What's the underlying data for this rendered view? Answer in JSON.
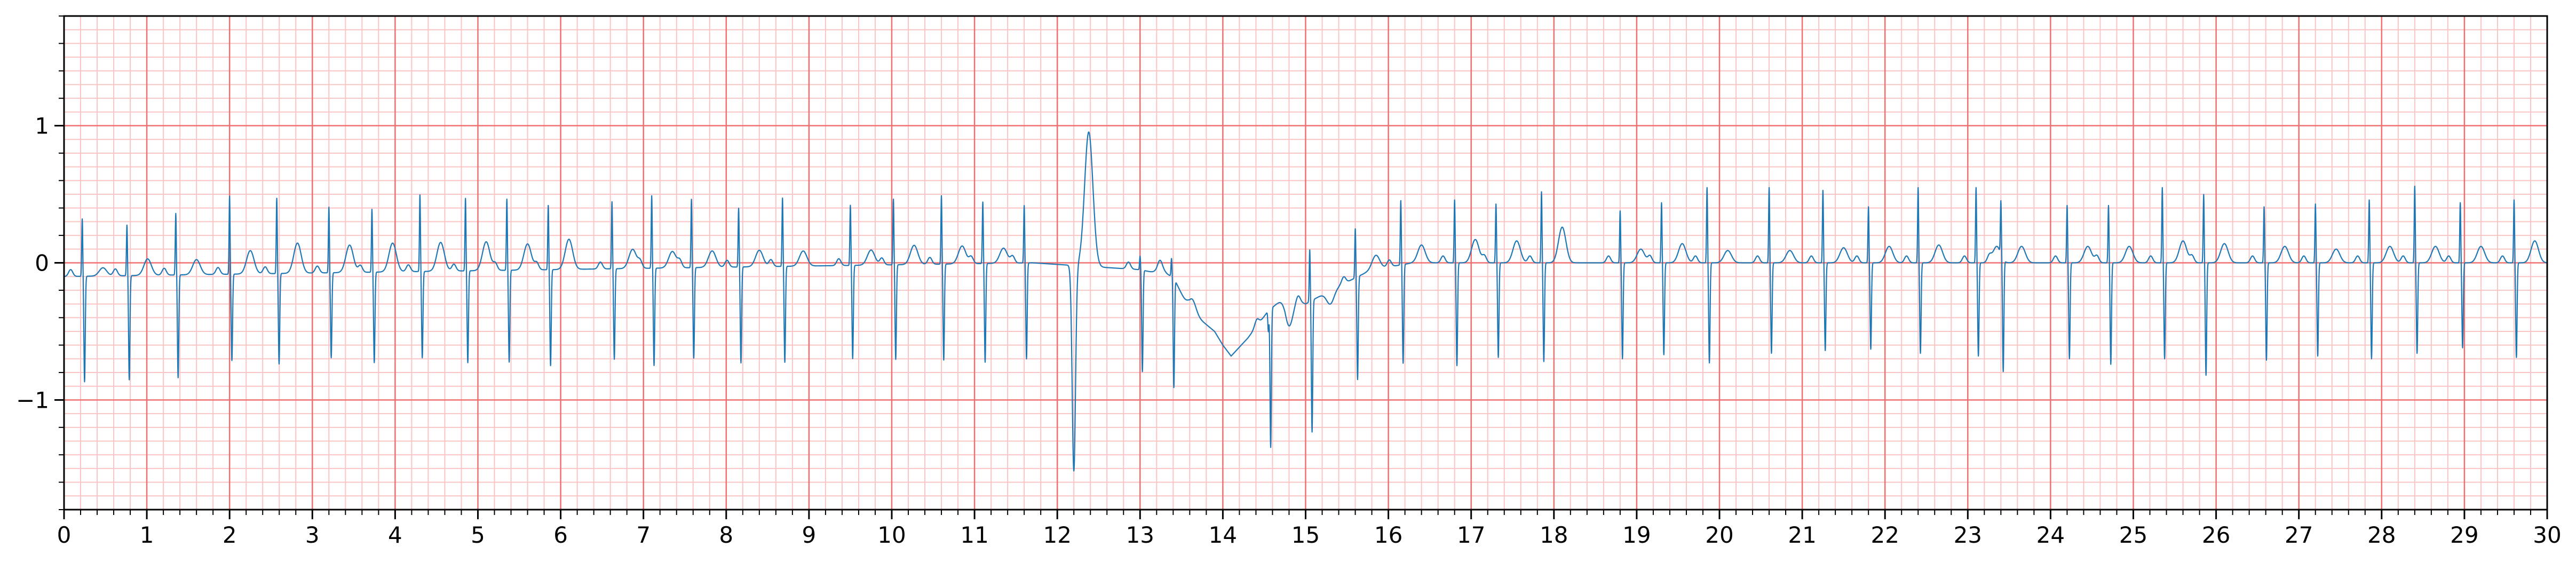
{
  "chart_data": {
    "type": "line",
    "title": "",
    "xlabel": "",
    "ylabel": "",
    "xlim": [
      0,
      30
    ],
    "ylim": [
      -1.8,
      1.8
    ],
    "x_ticks": [
      0,
      1,
      2,
      3,
      4,
      5,
      6,
      7,
      8,
      9,
      10,
      11,
      12,
      13,
      14,
      15,
      16,
      17,
      18,
      19,
      20,
      21,
      22,
      23,
      24,
      25,
      26,
      27,
      28,
      29,
      30
    ],
    "x_tick_labels": [
      "0",
      "1",
      "2",
      "3",
      "4",
      "5",
      "6",
      "7",
      "8",
      "9",
      "10",
      "11",
      "12",
      "13",
      "14",
      "15",
      "16",
      "17",
      "18",
      "19",
      "20",
      "21",
      "22",
      "23",
      "24",
      "25",
      "26",
      "27",
      "28",
      "29",
      "30"
    ],
    "y_ticks": [
      -1,
      0,
      1
    ],
    "y_tick_labels": [
      "−1",
      "0",
      "1"
    ],
    "grid": {
      "major": {
        "x_step": 1,
        "y_step": 1,
        "color": "#f07070"
      },
      "minor": {
        "x_step": 0.2,
        "y_step": 0.1,
        "color": "#fbc4c4"
      }
    },
    "series": [
      {
        "color": "#1f77b4",
        "beats": [
          {
            "t": 0.22,
            "r": 0.42,
            "s": -0.77,
            "tw": 0.06
          },
          {
            "t": 0.76,
            "r": 0.37,
            "s": -0.76,
            "tw": 0.12
          },
          {
            "t": 1.35,
            "r": 0.45,
            "s": -0.75,
            "tw": 0.11
          },
          {
            "t": 2.0,
            "r": 0.57,
            "s": -0.63,
            "tw": 0.17
          },
          {
            "t": 2.57,
            "r": 0.55,
            "s": -0.66,
            "tw": 0.22
          },
          {
            "t": 3.2,
            "r": 0.48,
            "s": -0.62,
            "tw": 0.2
          },
          {
            "t": 3.72,
            "r": 0.46,
            "s": -0.66,
            "tw": 0.21
          },
          {
            "t": 4.3,
            "r": 0.56,
            "s": -0.63,
            "tw": 0.21
          },
          {
            "t": 4.85,
            "r": 0.53,
            "s": -0.67,
            "tw": 0.21
          },
          {
            "t": 5.35,
            "r": 0.52,
            "s": -0.67,
            "tw": 0.19
          },
          {
            "t": 5.85,
            "r": 0.47,
            "s": -0.7,
            "tw": 0.22
          },
          {
            "t": 6.62,
            "r": 0.49,
            "s": -0.66,
            "tw": 0.14
          },
          {
            "t": 7.1,
            "r": 0.53,
            "s": -0.71,
            "tw": 0.12
          },
          {
            "t": 7.58,
            "r": 0.5,
            "s": -0.66,
            "tw": 0.12
          },
          {
            "t": 8.15,
            "r": 0.43,
            "s": -0.7,
            "tw": 0.12
          },
          {
            "t": 8.68,
            "r": 0.5,
            "s": -0.7,
            "tw": 0.11
          },
          {
            "t": 9.5,
            "r": 0.44,
            "s": -0.68,
            "tw": 0.11
          },
          {
            "t": 10.02,
            "r": 0.48,
            "s": -0.69,
            "tw": 0.14
          },
          {
            "t": 10.6,
            "r": 0.5,
            "s": -0.7,
            "tw": 0.13
          },
          {
            "t": 11.1,
            "r": 0.45,
            "s": -0.72,
            "tw": 0.11
          },
          {
            "t": 11.6,
            "r": 0.42,
            "s": -0.7,
            "tw": 0.0
          },
          {
            "t": 13.0,
            "r": 0.1,
            "s": -0.74,
            "tw": 0.05
          },
          {
            "t": 13.38,
            "r": 0.13,
            "s": -0.8,
            "tw": 0.1
          },
          {
            "t": 14.55,
            "r": -0.15,
            "s": -1.01,
            "tw": -0.2
          },
          {
            "t": 15.05,
            "r": 0.38,
            "s": -0.96,
            "tw": -0.1
          },
          {
            "t": 15.6,
            "r": 0.36,
            "s": -0.75,
            "tw": 0.1
          },
          {
            "t": 16.15,
            "r": 0.47,
            "s": -0.72,
            "tw": 0.13
          },
          {
            "t": 16.8,
            "r": 0.46,
            "s": -0.75,
            "tw": 0.17
          },
          {
            "t": 17.3,
            "r": 0.43,
            "s": -0.69,
            "tw": 0.16
          },
          {
            "t": 17.85,
            "r": 0.52,
            "s": -0.72,
            "tw": 0.26
          },
          {
            "t": 18.8,
            "r": 0.38,
            "s": -0.7,
            "tw": 0.1
          },
          {
            "t": 19.3,
            "r": 0.44,
            "s": -0.67,
            "tw": 0.14
          },
          {
            "t": 19.85,
            "r": 0.55,
            "s": -0.73,
            "tw": 0.09
          },
          {
            "t": 20.6,
            "r": 0.55,
            "s": -0.66,
            "tw": 0.09
          },
          {
            "t": 21.25,
            "r": 0.53,
            "s": -0.64,
            "tw": 0.11
          },
          {
            "t": 21.8,
            "r": 0.41,
            "s": -0.63,
            "tw": 0.12
          },
          {
            "t": 22.4,
            "r": 0.55,
            "s": -0.66,
            "tw": 0.13
          },
          {
            "t": 23.1,
            "r": 0.55,
            "s": -0.68,
            "tw": 0.12
          },
          {
            "t": 23.4,
            "r": 0.39,
            "s": -0.82,
            "tw": 0.12
          },
          {
            "t": 24.2,
            "r": 0.42,
            "s": -0.7,
            "tw": 0.12
          },
          {
            "t": 24.7,
            "r": 0.42,
            "s": -0.74,
            "tw": 0.12
          },
          {
            "t": 25.35,
            "r": 0.55,
            "s": -0.7,
            "tw": 0.16
          },
          {
            "t": 25.85,
            "r": 0.5,
            "s": -0.82,
            "tw": 0.14
          },
          {
            "t": 26.58,
            "r": 0.41,
            "s": -0.71,
            "tw": 0.12
          },
          {
            "t": 27.2,
            "r": 0.43,
            "s": -0.68,
            "tw": 0.1
          },
          {
            "t": 27.85,
            "r": 0.46,
            "s": -0.7,
            "tw": 0.12
          },
          {
            "t": 28.4,
            "r": 0.56,
            "s": -0.66,
            "tw": 0.12
          },
          {
            "t": 28.95,
            "r": 0.44,
            "s": -0.62,
            "tw": 0.12
          },
          {
            "t": 29.6,
            "r": 0.46,
            "s": -0.69,
            "tw": 0.16
          }
        ],
        "ectopic_beat": {
          "t": 12.2,
          "s": -1.5,
          "peak_t": 12.38,
          "peak": 0.98
        },
        "baseline_points": [
          [
            0.0,
            -0.1
          ],
          [
            11.7,
            0.0
          ],
          [
            13.0,
            -0.05
          ],
          [
            13.4,
            -0.1
          ],
          [
            13.6,
            -0.35
          ],
          [
            13.9,
            -0.5
          ],
          [
            14.0,
            -0.6
          ],
          [
            14.1,
            -0.68
          ],
          [
            14.3,
            -0.55
          ],
          [
            14.55,
            -0.35
          ],
          [
            14.75,
            -0.25
          ],
          [
            15.0,
            -0.3
          ],
          [
            15.3,
            -0.2
          ],
          [
            15.8,
            -0.05
          ],
          [
            16.3,
            0.0
          ],
          [
            30.0,
            0.0
          ]
        ]
      }
    ]
  }
}
